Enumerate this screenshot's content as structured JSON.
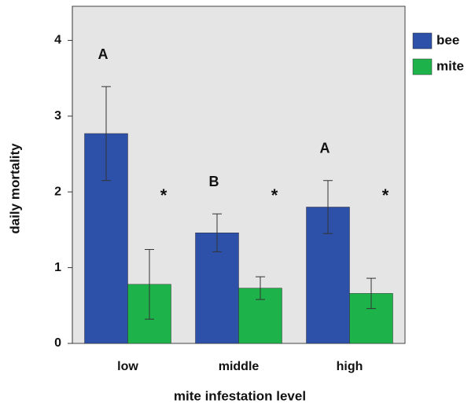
{
  "chart_data": {
    "type": "bar",
    "x_label": "mite infestation level",
    "y_label": "daily mortality",
    "categories": [
      "low",
      "middle",
      "high"
    ],
    "series": [
      {
        "name": "bee",
        "color": "#2d50a8",
        "values": [
          2.77,
          1.46,
          1.8
        ],
        "errors": [
          0.62,
          0.25,
          0.35
        ],
        "labels": [
          "A",
          "B",
          "A"
        ]
      },
      {
        "name": "mite",
        "color": "#1db34a",
        "values": [
          0.78,
          0.73,
          0.66
        ],
        "errors": [
          0.46,
          0.15,
          0.2
        ],
        "labels": [
          "*",
          "*",
          "*"
        ]
      }
    ],
    "ylim": [
      0,
      4.45
    ],
    "yticks": [
      0,
      1,
      2,
      3,
      4
    ],
    "legend": "right",
    "grid": false
  }
}
